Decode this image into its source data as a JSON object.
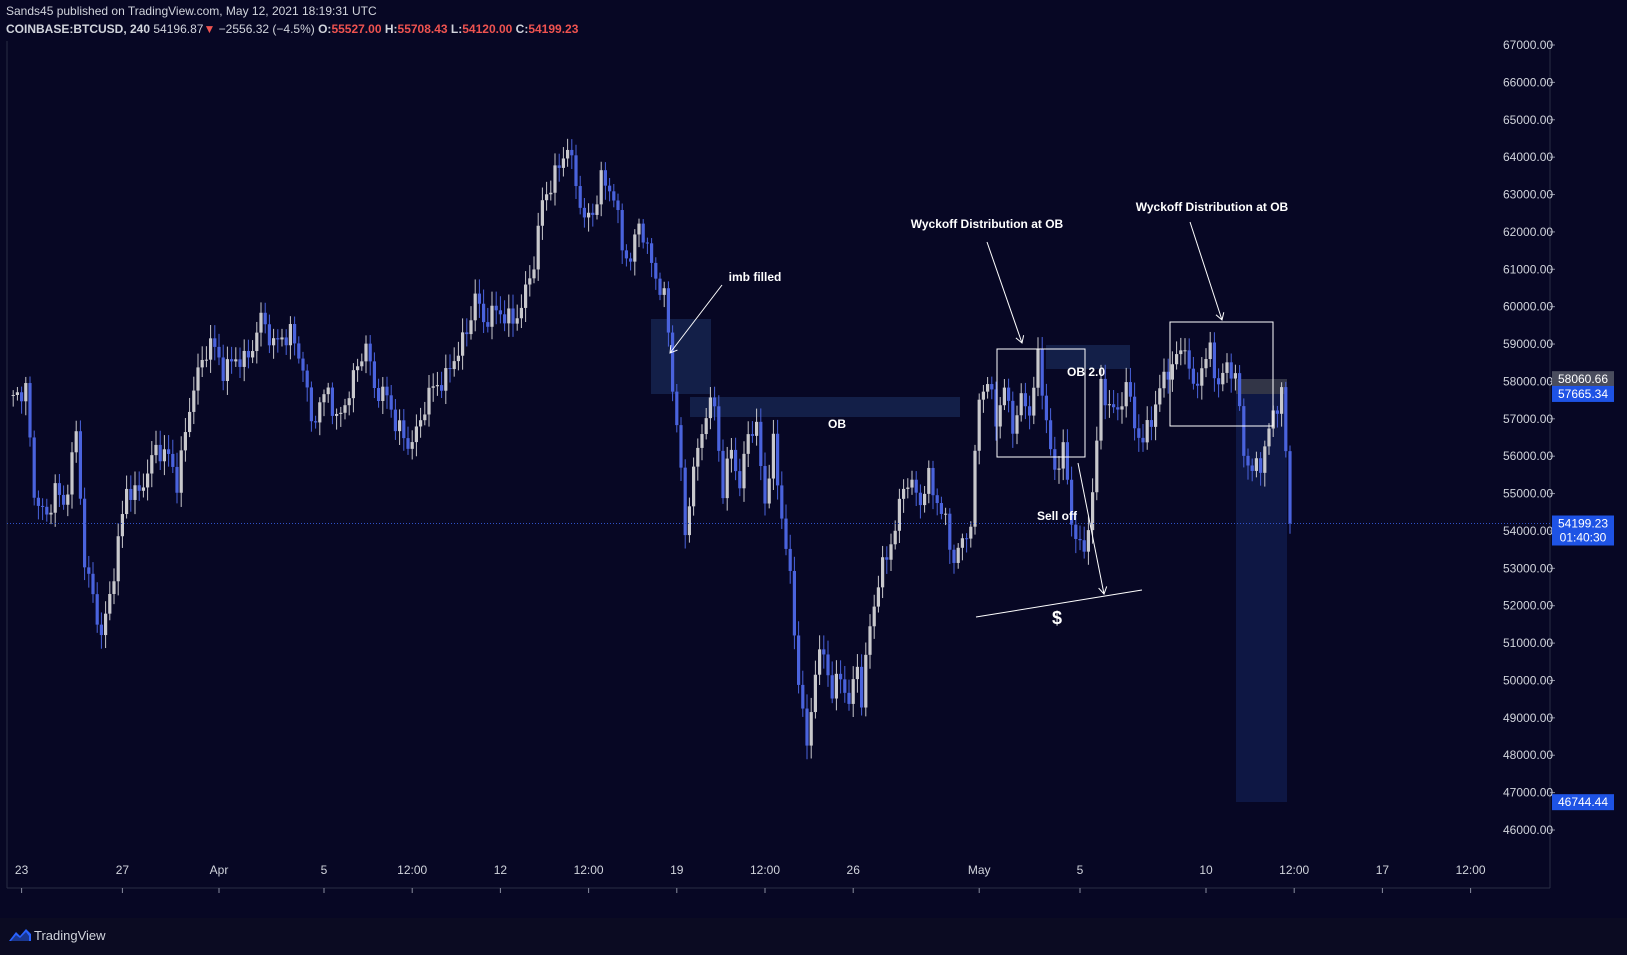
{
  "header": {
    "line1": "Sands45 published on TradingView.com, May 12, 2021 18:19:31 UTC",
    "symbol": "COINBASE:BTCUSD, 240",
    "last": "54196.87",
    "arrow": "▼",
    "change": "−2556.32 (−4.5%)",
    "o_label": "O:",
    "o": "55527.00",
    "h_label": "H:",
    "h": "55708.43",
    "l_label": "L:",
    "l": "54120.00",
    "c_label": "C:",
    "c": "54199.23"
  },
  "footer": {
    "brand": "TradingView"
  },
  "colors": {
    "bg": "#070724",
    "up": "#c8c8cc",
    "down": "#4a63dd",
    "accent": "#1e53e5",
    "box": "#ffffff",
    "zone": "#15224d"
  },
  "chart_data": {
    "type": "candlestick",
    "ylim": [
      45500,
      67200
    ],
    "y_ticks": [
      46000,
      47000,
      48000,
      49000,
      50000,
      51000,
      52000,
      53000,
      54000,
      55000,
      56000,
      57000,
      58000,
      59000,
      60000,
      61000,
      62000,
      63000,
      64000,
      65000,
      66000,
      67000
    ],
    "y_tick_labels": [
      "46000.00",
      "47000.00",
      "48000.00",
      "49000.00",
      "50000.00",
      "51000.00",
      "52000.00",
      "53000.00",
      "54000.00",
      "55000.00",
      "56000.00",
      "57000.00",
      "58000.00",
      "59000.00",
      "60000.00",
      "61000.00",
      "62000.00",
      "63000.00",
      "64000.00",
      "65000.00",
      "66000.00",
      "67000.00"
    ],
    "x_ticks": [
      {
        "i": 3,
        "label": "23"
      },
      {
        "i": 27,
        "label": "27"
      },
      {
        "i": 50,
        "label": "Apr"
      },
      {
        "i": 75,
        "label": "5"
      },
      {
        "i": 96,
        "label": "12:00"
      },
      {
        "i": 117,
        "label": "12"
      },
      {
        "i": 138,
        "label": "12:00"
      },
      {
        "i": 159,
        "label": "19"
      },
      {
        "i": 180,
        "label": "12:00"
      },
      {
        "i": 201,
        "label": "26"
      },
      {
        "i": 231,
        "label": "May"
      },
      {
        "i": 255,
        "label": "5"
      },
      {
        "i": 285,
        "label": "10"
      },
      {
        "i": 306,
        "label": "12:00"
      },
      {
        "i": 327,
        "label": "17"
      },
      {
        "i": 348,
        "label": "12:00"
      }
    ],
    "anchors": [
      [
        0,
        57500
      ],
      [
        4,
        57800
      ],
      [
        6,
        55000
      ],
      [
        9,
        54300
      ],
      [
        11,
        55200
      ],
      [
        13,
        54600
      ],
      [
        16,
        56600
      ],
      [
        18,
        53200
      ],
      [
        20,
        52200
      ],
      [
        22,
        51200
      ],
      [
        24,
        52200
      ],
      [
        26,
        53700
      ],
      [
        28,
        55100
      ],
      [
        31,
        55000
      ],
      [
        35,
        56200
      ],
      [
        38,
        56000
      ],
      [
        40,
        55300
      ],
      [
        44,
        57900
      ],
      [
        48,
        59100
      ],
      [
        51,
        58300
      ],
      [
        54,
        58600
      ],
      [
        57,
        58600
      ],
      [
        60,
        59700
      ],
      [
        63,
        59000
      ],
      [
        67,
        59300
      ],
      [
        70,
        58400
      ],
      [
        72,
        56900
      ],
      [
        76,
        57800
      ],
      [
        78,
        56900
      ],
      [
        80,
        57400
      ],
      [
        83,
        58400
      ],
      [
        85,
        59000
      ],
      [
        87,
        57800
      ],
      [
        90,
        57600
      ],
      [
        92,
        56900
      ],
      [
        95,
        56300
      ],
      [
        97,
        56600
      ],
      [
        100,
        57700
      ],
      [
        104,
        58100
      ],
      [
        106,
        58600
      ],
      [
        109,
        59300
      ],
      [
        111,
        60300
      ],
      [
        113,
        59600
      ],
      [
        116,
        59900
      ],
      [
        120,
        59600
      ],
      [
        122,
        60000
      ],
      [
        124,
        60800
      ],
      [
        125,
        61200
      ],
      [
        127,
        62800
      ],
      [
        130,
        63500
      ],
      [
        133,
        64300
      ],
      [
        135,
        63300
      ],
      [
        137,
        62300
      ],
      [
        139,
        62500
      ],
      [
        141,
        63400
      ],
      [
        144,
        63000
      ],
      [
        146,
        61600
      ],
      [
        148,
        61200
      ],
      [
        150,
        62300
      ],
      [
        152,
        61500
      ],
      [
        154,
        60800
      ],
      [
        156,
        60200
      ],
      [
        157,
        59400
      ],
      [
        158,
        57800
      ],
      [
        159,
        56900
      ],
      [
        161,
        54000
      ],
      [
        163,
        55600
      ],
      [
        166,
        57200
      ],
      [
        168,
        57400
      ],
      [
        170,
        55000
      ],
      [
        172,
        56300
      ],
      [
        174,
        55100
      ],
      [
        176,
        56700
      ],
      [
        178,
        56700
      ],
      [
        180,
        54800
      ],
      [
        182,
        56300
      ],
      [
        184,
        54400
      ],
      [
        186,
        52700
      ],
      [
        188,
        50000
      ],
      [
        190,
        48200
      ],
      [
        192,
        50300
      ],
      [
        194,
        50800
      ],
      [
        196,
        49600
      ],
      [
        198,
        50200
      ],
      [
        200,
        49300
      ],
      [
        202,
        50500
      ],
      [
        203,
        49400
      ],
      [
        205,
        51500
      ],
      [
        207,
        52600
      ],
      [
        209,
        53400
      ],
      [
        211,
        54000
      ],
      [
        213,
        55300
      ],
      [
        215,
        55200
      ],
      [
        217,
        54800
      ],
      [
        219,
        55400
      ],
      [
        221,
        54800
      ],
      [
        223,
        54200
      ],
      [
        225,
        53200
      ],
      [
        227,
        53700
      ],
      [
        229,
        54200
      ],
      [
        231,
        57600
      ],
      [
        233,
        58000
      ],
      [
        235,
        57000
      ],
      [
        237,
        57800
      ],
      [
        239,
        56800
      ],
      [
        241,
        57500
      ],
      [
        243,
        57200
      ],
      [
        245,
        58600
      ],
      [
        247,
        57000
      ],
      [
        249,
        55400
      ],
      [
        251,
        56400
      ],
      [
        253,
        54100
      ],
      [
        255,
        53800
      ],
      [
        256,
        53200
      ],
      [
        258,
        55100
      ],
      [
        260,
        57800
      ],
      [
        262,
        57400
      ],
      [
        264,
        57100
      ],
      [
        266,
        58000
      ],
      [
        268,
        56800
      ],
      [
        270,
        56400
      ],
      [
        272,
        57000
      ],
      [
        274,
        57800
      ],
      [
        276,
        58300
      ],
      [
        278,
        58600
      ],
      [
        280,
        59000
      ],
      [
        282,
        57700
      ],
      [
        284,
        58400
      ],
      [
        286,
        58800
      ],
      [
        288,
        57900
      ],
      [
        290,
        58400
      ],
      [
        292,
        58200
      ],
      [
        294,
        56100
      ],
      [
        296,
        55600
      ],
      [
        298,
        55800
      ],
      [
        300,
        56700
      ],
      [
        302,
        57400
      ],
      [
        303,
        57800
      ],
      [
        305,
        54200
      ]
    ],
    "annotations": [
      "imb filled",
      "OB",
      "OB 2.0",
      "Wyckoff Distribution at OB",
      "Wyckoff Distribution at OB",
      "Sell off",
      "$"
    ],
    "price_labels": {
      "last": "54199.23",
      "countdown": "01:40:30",
      "target_upper": "58060.66",
      "entry": "57665.34",
      "target_lower": "46744.44"
    }
  }
}
